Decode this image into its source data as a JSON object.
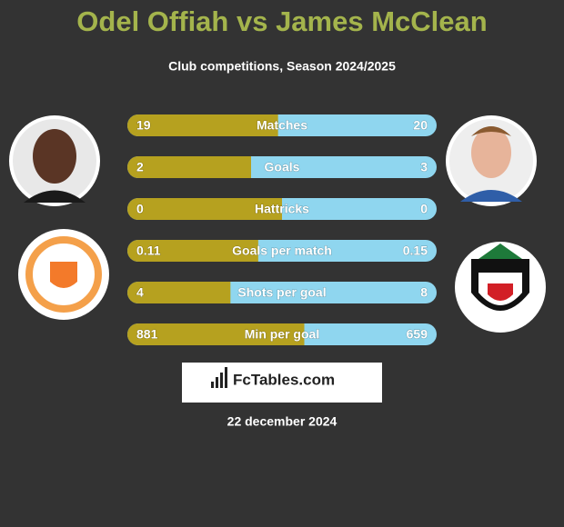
{
  "title": "Odel Offiah vs James McClean",
  "subtitle": "Club competitions, Season 2024/2025",
  "rows": [
    {
      "label": "Matches",
      "left": 19,
      "right": 20
    },
    {
      "label": "Goals",
      "left": 2,
      "right": 3
    },
    {
      "label": "Hattricks",
      "left": 0,
      "right": 0
    },
    {
      "label": "Goals per match",
      "left": 0.11,
      "right": 0.15
    },
    {
      "label": "Shots per goal",
      "left": 4,
      "right": 8
    },
    {
      "label": "Min per goal",
      "left": 881,
      "right": 659
    }
  ],
  "brand": "FcTables.com",
  "date": "22 december 2024"
}
